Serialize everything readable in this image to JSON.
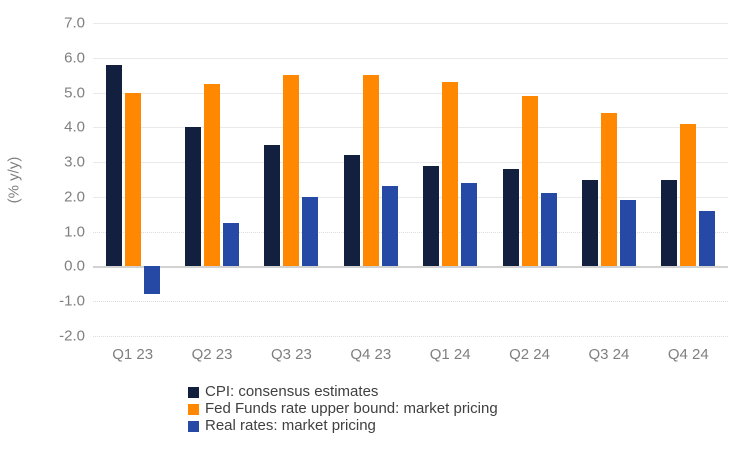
{
  "chart_data": {
    "type": "bar",
    "title": "",
    "xlabel": "",
    "ylabel": "(% y/y)",
    "ylim": [
      -2.0,
      7.0
    ],
    "ytick_step": 1.0,
    "ytick_labels": [
      "7.0",
      "6.0",
      "5.0",
      "4.0",
      "3.0",
      "2.0",
      "1.0",
      "0.0",
      "-1.0",
      "-2.0"
    ],
    "dotted_gridlines": [
      1.0,
      -1.0,
      -2.0
    ],
    "grid": "horizontal",
    "legend_position": "bottom-left",
    "categories": [
      "Q1 23",
      "Q2 23",
      "Q3 23",
      "Q4 23",
      "Q1 24",
      "Q2 24",
      "Q3 24",
      "Q4 24"
    ],
    "series": [
      {
        "key": "cpi",
        "name": "CPI: consensus estimates",
        "color": "#131F3E",
        "values": [
          5.8,
          4.0,
          3.5,
          3.2,
          2.9,
          2.8,
          2.5,
          2.5
        ]
      },
      {
        "key": "fed-funds",
        "name": "Fed Funds rate upper bound: market pricing",
        "color": "#FF8800",
        "values": [
          5.0,
          5.25,
          5.5,
          5.5,
          5.3,
          4.9,
          4.4,
          4.1
        ]
      },
      {
        "key": "real-rates",
        "name": "Real rates: market pricing",
        "color": "#2549A5",
        "values": [
          -0.8,
          1.25,
          2.0,
          2.3,
          2.4,
          2.1,
          1.9,
          1.6
        ]
      }
    ]
  }
}
